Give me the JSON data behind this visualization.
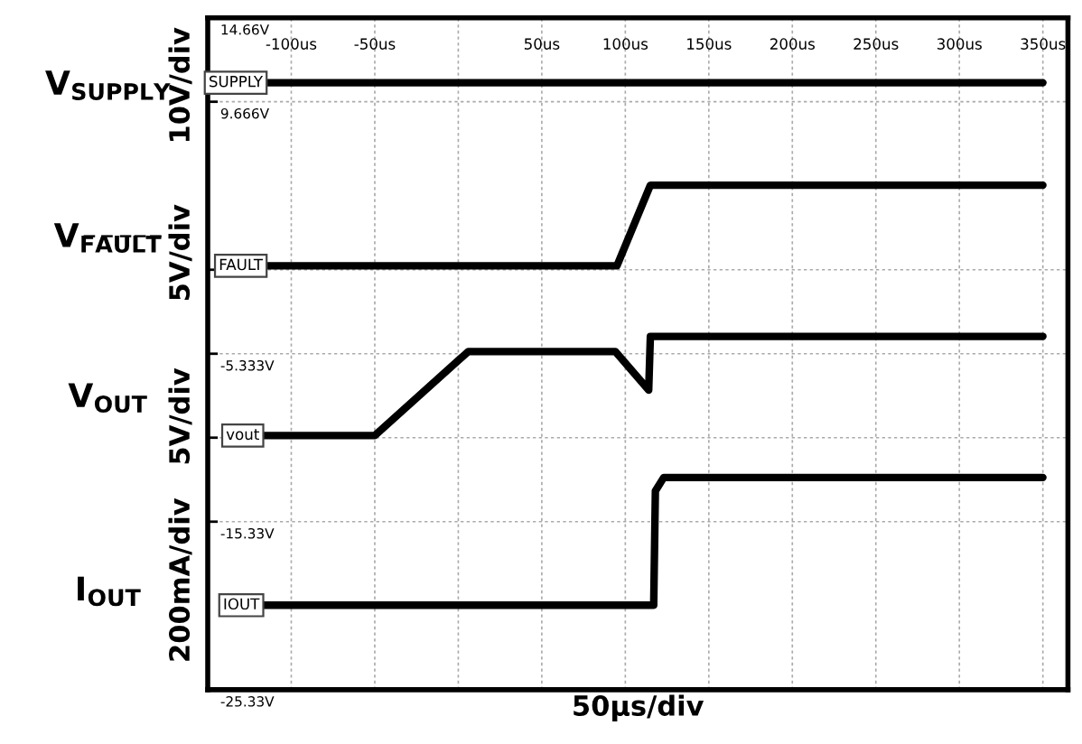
{
  "chart_data": {
    "type": "line",
    "xlabel": "50μs/div",
    "annotations": [
      "V$_{SUPPLY}$",
      "10V/div",
      "V$_{F̅A̅U̅L̅T̅}$",
      "5V/div",
      "V$_{OUT}$",
      "5V/div",
      "I$_{OUT}$",
      "200mA/div"
    ],
    "series": [
      {
        "name": "SUPPLY",
        "color": "#000000",
        "x": [
          -116,
          350
        ],
        "values": [
          10.8,
          10.8
        ]
      },
      {
        "name": "FAULT",
        "color": "#000000",
        "x": [
          -116,
          95,
          115,
          350
        ],
        "values": [
          -0.1,
          -0.1,
          4.7,
          4.7
        ]
      },
      {
        "name": "vout",
        "color": "#000000",
        "x": [
          -118,
          -50,
          6,
          94,
          114,
          115,
          350
        ],
        "values": [
          -10.2,
          -10.2,
          -5.2,
          -5.2,
          -7.5,
          -4.3,
          -4.3
        ]
      },
      {
        "name": "IOUT",
        "color": "#000000",
        "x": [
          -118,
          117,
          118,
          123,
          350
        ],
        "values": [
          -20.3,
          -20.3,
          -13.5,
          -12.7,
          -12.7
        ]
      }
    ],
    "xlim": [
      -150,
      365
    ],
    "ylim": [
      -25.33,
      14.66
    ],
    "xticks": [
      {
        "value": -150,
        "label": null
      },
      {
        "value": -100,
        "label": "-100us"
      },
      {
        "value": -50,
        "label": "-50us"
      },
      {
        "value": 0,
        "label": null
      },
      {
        "value": 50,
        "label": "50us"
      },
      {
        "value": 100,
        "label": "100us"
      },
      {
        "value": 150,
        "label": "150us"
      },
      {
        "value": 200,
        "label": "200us"
      },
      {
        "value": 250,
        "label": "250us"
      },
      {
        "value": 300,
        "label": "300us"
      },
      {
        "value": 350,
        "label": "350us"
      }
    ],
    "yticks": [
      {
        "value": 14.66,
        "label": "14.66V"
      },
      {
        "value": 9.666,
        "label": "9.666V"
      },
      {
        "value": -0.333,
        "label": null
      },
      {
        "value": -5.333,
        "label": "-5.333V"
      },
      {
        "value": -10.33,
        "label": null
      },
      {
        "value": -15.33,
        "label": "-15.33V"
      },
      {
        "value": -25.33,
        "label": "-25.33V"
      }
    ],
    "grid": true,
    "legend": "left",
    "marker": "none",
    "line_style": "solid"
  }
}
